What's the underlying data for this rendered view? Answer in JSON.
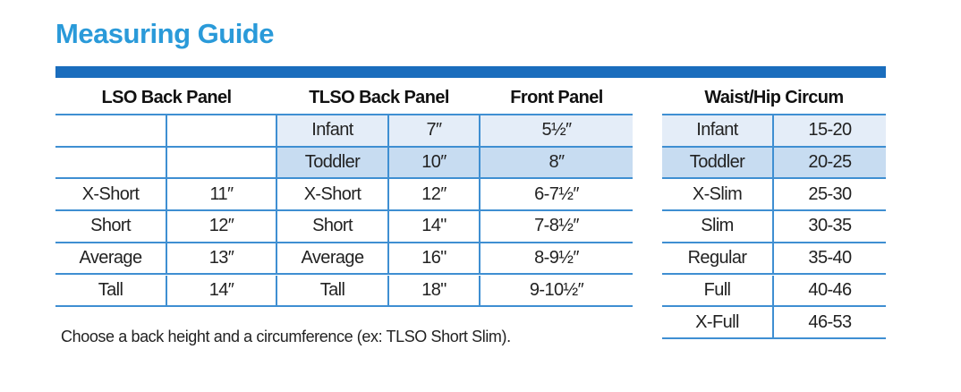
{
  "title": "Measuring Guide",
  "note": "Choose a back height and a circumference (ex: TLSO Short Slim).",
  "lso": {
    "header": "LSO Back Panel",
    "rows": [
      [
        "X-Short",
        "11″"
      ],
      [
        "Short",
        "12″"
      ],
      [
        "Average",
        "13″"
      ],
      [
        "Tall",
        "14″"
      ]
    ]
  },
  "tlso": {
    "header": "TLSO Back Panel",
    "rows": [
      [
        "Infant",
        "7″"
      ],
      [
        "Toddler",
        "10″"
      ],
      [
        "X-Short",
        "12″"
      ],
      [
        "Short",
        "14\""
      ],
      [
        "Average",
        "16\""
      ],
      [
        "Tall",
        "18\""
      ]
    ]
  },
  "front_panel": {
    "header": "Front Panel",
    "values": [
      "5½″",
      "8″",
      "6-7½″",
      "7-8½″",
      "8-9½″",
      "9-10½″"
    ]
  },
  "waist_hip": {
    "header": "Waist/Hip Circum",
    "rows": [
      [
        "Infant",
        "15-20"
      ],
      [
        "Toddler",
        "20-25"
      ],
      [
        "X-Slim",
        "25-30"
      ],
      [
        "Slim",
        "30-35"
      ],
      [
        "Regular",
        "35-40"
      ],
      [
        "Full",
        "40-46"
      ],
      [
        "X-Full",
        "46-53"
      ]
    ]
  }
}
